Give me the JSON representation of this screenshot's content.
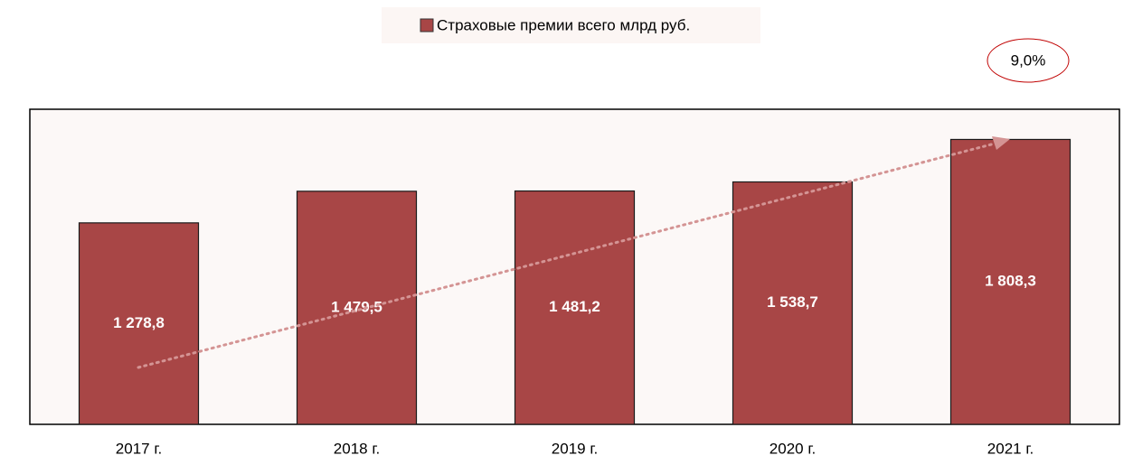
{
  "chart_data": {
    "type": "bar",
    "categories": [
      "2017 г.",
      "2018 г.",
      "2019 г.",
      "2020 г.",
      "2021 г."
    ],
    "series": [
      {
        "name": "Страховые премии всего млрд руб.",
        "color": "#a84646",
        "values": [
          1278.8,
          1479.5,
          1481.2,
          1538.7,
          1808.3
        ],
        "value_labels": [
          "1 278,8",
          "1 479,5",
          "1 481,2",
          "1 538,7",
          "1 808,3"
        ]
      }
    ],
    "ylim": [
      0,
      2000
    ],
    "annotation": "9,0%"
  }
}
